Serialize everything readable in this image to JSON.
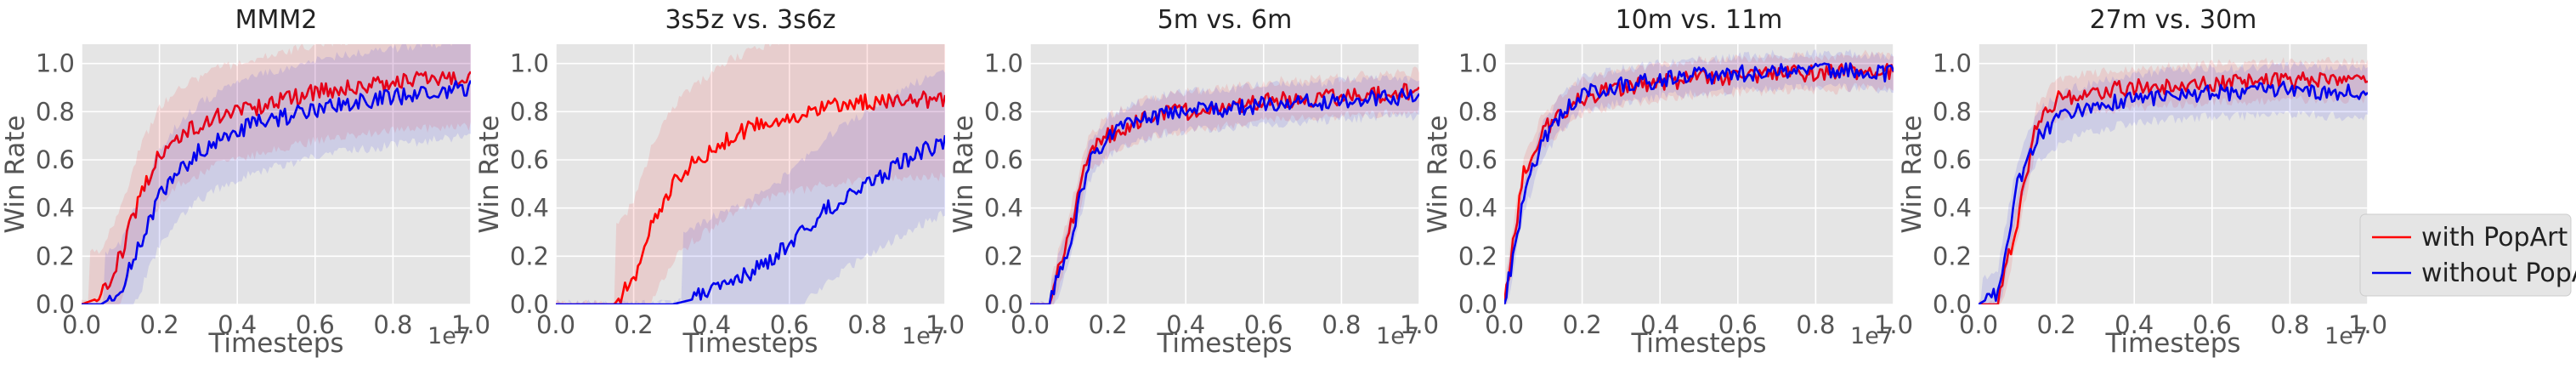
{
  "figure": {
    "legend": {
      "entries": [
        {
          "label": "with PopArt",
          "color": "#ff0000"
        },
        {
          "label": "without PopArt",
          "color": "#0000ee"
        }
      ],
      "placement": "right, vertically centered below middle"
    },
    "style": {
      "axes_background": "#e5e5e5",
      "grid": "white"
    }
  },
  "chart_data": [
    {
      "type": "line",
      "title": "MMM2",
      "xlabel": "Timesteps",
      "ylabel": "Win Rate",
      "x_scale_label": "1e7",
      "xlim": [
        0.0,
        1.0
      ],
      "ylim": [
        0.0,
        1.08
      ],
      "xticks": [
        "0.0",
        "0.2",
        "0.4",
        "0.6",
        "0.8",
        "1.0"
      ],
      "yticks": [
        "0.0",
        "0.2",
        "0.4",
        "0.6",
        "0.8",
        "1.0"
      ],
      "x": [
        0.0,
        0.05,
        0.1,
        0.15,
        0.2,
        0.25,
        0.3,
        0.35,
        0.4,
        0.45,
        0.5,
        0.55,
        0.6,
        0.65,
        0.7,
        0.75,
        0.8,
        0.85,
        0.9,
        0.95,
        1.0
      ],
      "series": [
        {
          "name": "with PopArt",
          "color": "#ff0000",
          "band_width": 0.2,
          "values": [
            0.0,
            0.03,
            0.2,
            0.45,
            0.62,
            0.7,
            0.74,
            0.78,
            0.8,
            0.82,
            0.84,
            0.86,
            0.88,
            0.89,
            0.9,
            0.91,
            0.92,
            0.93,
            0.93,
            0.94,
            0.94
          ]
        },
        {
          "name": "without PopArt",
          "color": "#0000ee",
          "band_width": 0.2,
          "values": [
            0.0,
            0.0,
            0.05,
            0.25,
            0.45,
            0.55,
            0.63,
            0.68,
            0.72,
            0.75,
            0.77,
            0.79,
            0.81,
            0.83,
            0.84,
            0.85,
            0.86,
            0.87,
            0.88,
            0.89,
            0.9
          ]
        }
      ]
    },
    {
      "type": "line",
      "title": "3s5z vs. 3s6z",
      "xlabel": "Timesteps",
      "ylabel": "Win Rate",
      "x_scale_label": "1e7",
      "xlim": [
        0.0,
        1.0
      ],
      "ylim": [
        0.0,
        1.08
      ],
      "xticks": [
        "0.0",
        "0.2",
        "0.4",
        "0.6",
        "0.8",
        "1.0"
      ],
      "yticks": [
        "0.0",
        "0.2",
        "0.4",
        "0.6",
        "0.8",
        "1.0"
      ],
      "x": [
        0.0,
        0.05,
        0.1,
        0.15,
        0.2,
        0.25,
        0.3,
        0.35,
        0.4,
        0.45,
        0.5,
        0.55,
        0.6,
        0.65,
        0.7,
        0.75,
        0.8,
        0.85,
        0.9,
        0.95,
        1.0
      ],
      "series": [
        {
          "name": "with PopArt",
          "color": "#ff0000",
          "band_width": 0.32,
          "values": [
            0.0,
            0.0,
            0.0,
            0.0,
            0.1,
            0.35,
            0.5,
            0.58,
            0.64,
            0.7,
            0.73,
            0.76,
            0.78,
            0.8,
            0.82,
            0.83,
            0.84,
            0.84,
            0.85,
            0.85,
            0.85
          ]
        },
        {
          "name": "without PopArt",
          "color": "#0000ee",
          "band_width": 0.3,
          "values": [
            0.0,
            0.0,
            0.0,
            0.0,
            0.0,
            0.0,
            0.0,
            0.02,
            0.06,
            0.1,
            0.13,
            0.18,
            0.25,
            0.32,
            0.4,
            0.45,
            0.5,
            0.55,
            0.6,
            0.64,
            0.68
          ]
        }
      ]
    },
    {
      "type": "line",
      "title": "5m vs. 6m",
      "xlabel": "Timesteps",
      "ylabel": "Win Rate",
      "x_scale_label": "1e7",
      "xlim": [
        0.0,
        1.0
      ],
      "ylim": [
        0.0,
        1.08
      ],
      "xticks": [
        "0.0",
        "0.2",
        "0.4",
        "0.6",
        "0.8",
        "1.0"
      ],
      "yticks": [
        "0.0",
        "0.2",
        "0.4",
        "0.6",
        "0.8",
        "1.0"
      ],
      "x": [
        0.0,
        0.05,
        0.1,
        0.15,
        0.2,
        0.25,
        0.3,
        0.35,
        0.4,
        0.45,
        0.5,
        0.55,
        0.6,
        0.65,
        0.7,
        0.75,
        0.8,
        0.85,
        0.9,
        0.95,
        1.0
      ],
      "series": [
        {
          "name": "with PopArt",
          "color": "#ff0000",
          "band_width": 0.08,
          "values": [
            0.0,
            0.0,
            0.3,
            0.62,
            0.7,
            0.74,
            0.77,
            0.79,
            0.8,
            0.81,
            0.82,
            0.83,
            0.84,
            0.85,
            0.85,
            0.86,
            0.86,
            0.87,
            0.87,
            0.88,
            0.89
          ]
        },
        {
          "name": "without PopArt",
          "color": "#0000ee",
          "band_width": 0.08,
          "values": [
            0.0,
            0.0,
            0.25,
            0.58,
            0.7,
            0.74,
            0.77,
            0.79,
            0.8,
            0.81,
            0.81,
            0.82,
            0.83,
            0.83,
            0.84,
            0.84,
            0.85,
            0.85,
            0.86,
            0.86,
            0.86
          ]
        }
      ]
    },
    {
      "type": "line",
      "title": "10m vs. 11m",
      "xlabel": "Timesteps",
      "ylabel": "Win Rate",
      "x_scale_label": "1e7",
      "xlim": [
        0.0,
        1.0
      ],
      "ylim": [
        0.0,
        1.08
      ],
      "xticks": [
        "0.0",
        "0.2",
        "0.4",
        "0.6",
        "0.8",
        "1.0"
      ],
      "yticks": [
        "0.0",
        "0.2",
        "0.4",
        "0.6",
        "0.8",
        "1.0"
      ],
      "x": [
        0.0,
        0.05,
        0.1,
        0.15,
        0.2,
        0.25,
        0.3,
        0.35,
        0.4,
        0.45,
        0.5,
        0.55,
        0.6,
        0.65,
        0.7,
        0.75,
        0.8,
        0.85,
        0.9,
        0.95,
        1.0
      ],
      "series": [
        {
          "name": "with PopArt",
          "color": "#ff0000",
          "band_width": 0.07,
          "values": [
            0.0,
            0.55,
            0.72,
            0.8,
            0.86,
            0.88,
            0.9,
            0.91,
            0.92,
            0.93,
            0.94,
            0.94,
            0.95,
            0.95,
            0.96,
            0.96,
            0.96,
            0.96,
            0.97,
            0.97,
            0.96
          ]
        },
        {
          "name": "without PopArt",
          "color": "#0000ee",
          "band_width": 0.07,
          "values": [
            0.0,
            0.45,
            0.68,
            0.8,
            0.88,
            0.89,
            0.91,
            0.92,
            0.93,
            0.94,
            0.95,
            0.95,
            0.96,
            0.96,
            0.97,
            0.97,
            0.97,
            0.97,
            0.97,
            0.96,
            0.96
          ]
        }
      ]
    },
    {
      "type": "line",
      "title": "27m vs. 30m",
      "xlabel": "Timesteps",
      "ylabel": "Win Rate",
      "x_scale_label": "1e7",
      "xlim": [
        0.0,
        1.0
      ],
      "ylim": [
        0.0,
        1.08
      ],
      "xticks": [
        "0.0",
        "0.2",
        "0.4",
        "0.6",
        "0.8",
        "1.0"
      ],
      "yticks": [
        "0.0",
        "0.2",
        "0.4",
        "0.6",
        "0.8",
        "1.0"
      ],
      "x": [
        0.0,
        0.05,
        0.1,
        0.15,
        0.2,
        0.25,
        0.3,
        0.35,
        0.4,
        0.45,
        0.5,
        0.55,
        0.6,
        0.65,
        0.7,
        0.75,
        0.8,
        0.85,
        0.9,
        0.95,
        1.0
      ],
      "series": [
        {
          "name": "with PopArt",
          "color": "#ff0000",
          "band_width": 0.08,
          "values": [
            0.0,
            0.0,
            0.35,
            0.75,
            0.85,
            0.87,
            0.88,
            0.89,
            0.9,
            0.9,
            0.91,
            0.91,
            0.92,
            0.92,
            0.92,
            0.93,
            0.93,
            0.93,
            0.93,
            0.93,
            0.93
          ]
        },
        {
          "name": "without PopArt",
          "color": "#0000ee",
          "band_width": 0.1,
          "values": [
            0.0,
            0.05,
            0.5,
            0.7,
            0.76,
            0.8,
            0.82,
            0.84,
            0.85,
            0.86,
            0.87,
            0.87,
            0.88,
            0.88,
            0.88,
            0.89,
            0.89,
            0.89,
            0.88,
            0.88,
            0.88
          ]
        }
      ]
    }
  ]
}
